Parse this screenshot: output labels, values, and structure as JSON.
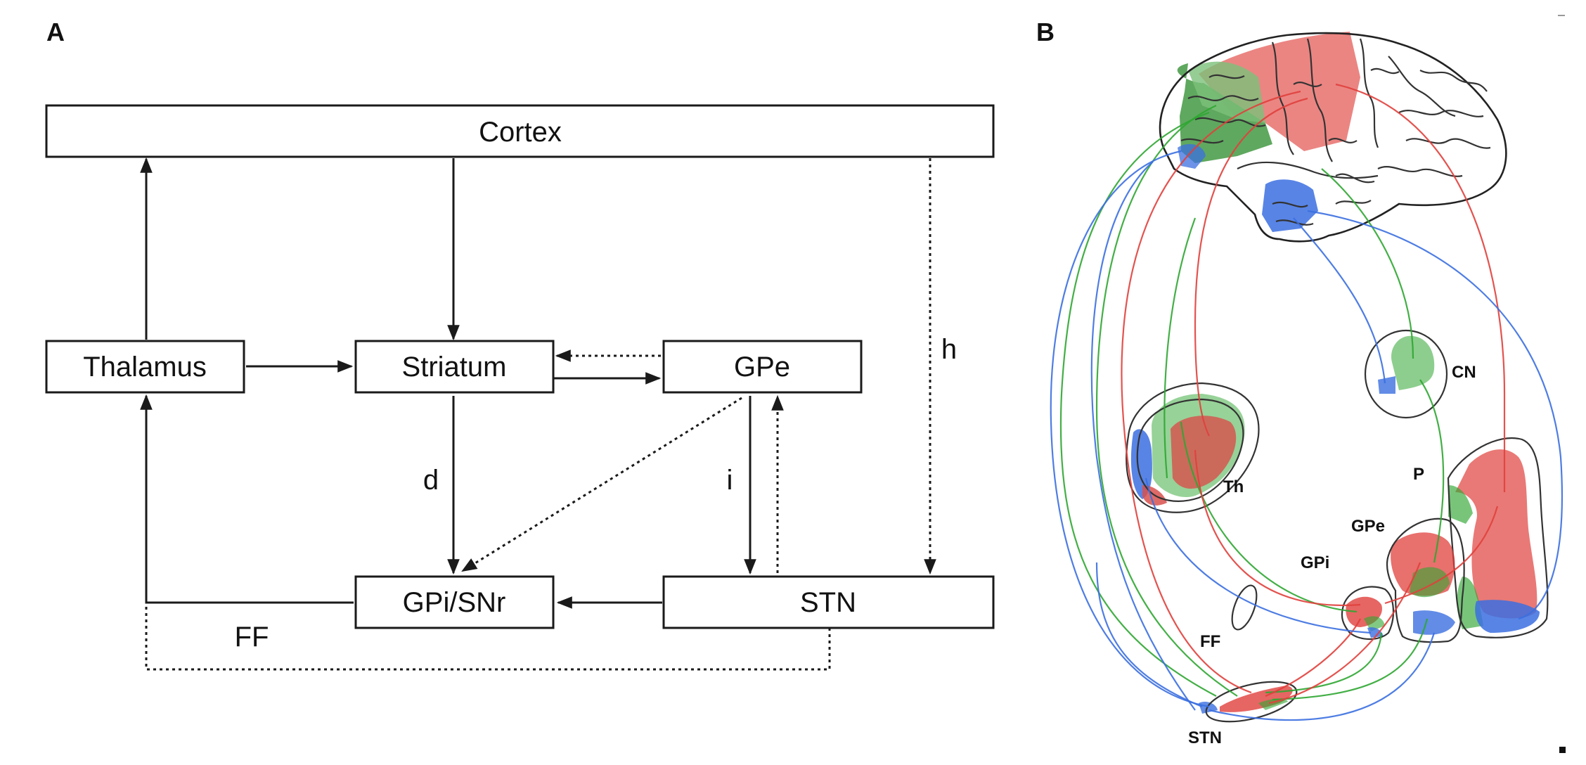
{
  "panel_a": {
    "label": "A",
    "nodes": {
      "cortex": "Cortex",
      "thalamus": "Thalamus",
      "striatum": "Striatum",
      "gpe": "GPe",
      "gpi_snr": "GPi/SNr",
      "stn": "STN"
    },
    "pathway_labels": {
      "direct": "d",
      "indirect": "i",
      "hyperdirect": "h",
      "feedforward": "FF"
    }
  },
  "panel_b": {
    "label": "B",
    "regions": {
      "cn": "CN",
      "th": "Th",
      "p": "P",
      "gpe": "GPe",
      "gpi": "GPi",
      "ff": "FF",
      "stn": "STN"
    },
    "colors": {
      "motor": "#e0403c",
      "associative": "#2fa632",
      "limbic": "#3b6fe0"
    }
  }
}
